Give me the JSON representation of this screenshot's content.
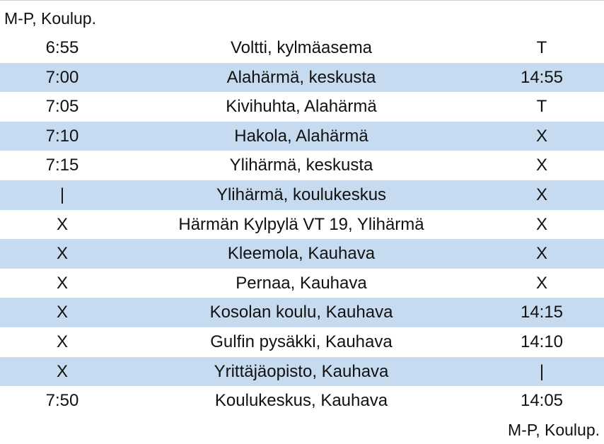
{
  "schedule": {
    "header_label": "M-P, Koulup.",
    "footer_label": "M-P, Koulup.",
    "rows": [
      {
        "departure": "6:55",
        "stop": "Voltti, kylmäasema",
        "return": "T"
      },
      {
        "departure": "7:00",
        "stop": "Alahärmä, keskusta",
        "return": "14:55"
      },
      {
        "departure": "7:05",
        "stop": "Kivihuhta, Alahärmä",
        "return": "T"
      },
      {
        "departure": "7:10",
        "stop": "Hakola, Alahärmä",
        "return": "X"
      },
      {
        "departure": "7:15",
        "stop": "Ylihärmä, keskusta",
        "return": "X"
      },
      {
        "departure": "|",
        "stop": "Ylihärmä, koulukeskus",
        "return": "X"
      },
      {
        "departure": "X",
        "stop": "Härmän Kylpylä VT 19, Ylihärmä",
        "return": "X"
      },
      {
        "departure": "X",
        "stop": "Kleemola, Kauhava",
        "return": "X"
      },
      {
        "departure": "X",
        "stop": "Pernaa, Kauhava",
        "return": "X"
      },
      {
        "departure": "X",
        "stop": "Kosolan koulu, Kauhava",
        "return": "14:15"
      },
      {
        "departure": "X",
        "stop": "Gulfin pysäkki, Kauhava",
        "return": "14:10"
      },
      {
        "departure": "X",
        "stop": "Yrittäjäopisto, Kauhava",
        "return": "|"
      },
      {
        "departure": "7:50",
        "stop": "Koulukeskus, Kauhava",
        "return": "14:05"
      }
    ]
  },
  "colors": {
    "row_shade": "#c6dbef",
    "text": "#111111",
    "background": "#ffffff"
  }
}
